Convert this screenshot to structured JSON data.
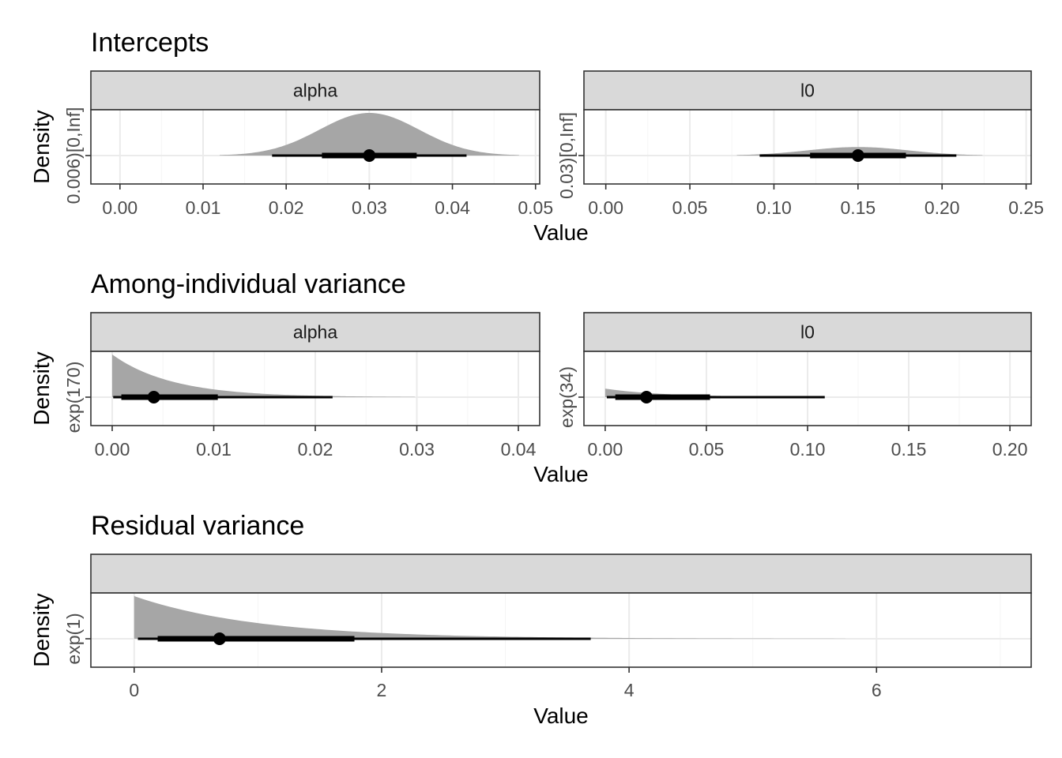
{
  "colors": {
    "density_fill": "#a6a6a6",
    "strip_fill": "#d9d9d9",
    "panel_border": "#333333",
    "grid_major": "#ebebeb",
    "grid_minor": "#f5f5f5",
    "interval": "#000000"
  },
  "chart_data": [
    {
      "type": "area",
      "chart_kind": "half-eye density with point-interval",
      "title": "Intercepts",
      "ylabel": "Density",
      "xlabel": "Value",
      "grid": true,
      "panels": [
        {
          "strip": "alpha",
          "y_tick": "0.006)[0,Inf]",
          "xlim": [
            -0.0035,
            0.0505
          ],
          "x_ticks": [
            0.0,
            0.01,
            0.02,
            0.03,
            0.04,
            0.05
          ],
          "x_tick_labels": [
            "0.00",
            "0.01",
            "0.02",
            "0.03",
            "0.04",
            "0.05"
          ],
          "density": {
            "shape": "normal",
            "mean": 0.03,
            "sd": 0.006,
            "range": [
              0.012,
              0.048
            ],
            "peak": 1.0
          },
          "point": 0.03,
          "interval_66": [
            0.0243,
            0.0357
          ],
          "interval_95": [
            0.0183,
            0.0417
          ]
        },
        {
          "strip": "l0",
          "y_tick": "0.03)[0,Inf]",
          "xlim": [
            -0.013,
            0.253
          ],
          "x_ticks": [
            0.0,
            0.05,
            0.1,
            0.15,
            0.2,
            0.25
          ],
          "x_tick_labels": [
            "0.00",
            "0.05",
            "0.10",
            "0.15",
            "0.20",
            "0.25"
          ],
          "density": {
            "shape": "normal",
            "mean": 0.15,
            "sd": 0.03,
            "range": [
              0.078,
              0.224
            ],
            "peak": 0.2
          },
          "point": 0.15,
          "interval_66": [
            0.1215,
            0.1785
          ],
          "interval_95": [
            0.0915,
            0.2085
          ]
        }
      ]
    },
    {
      "type": "area",
      "chart_kind": "half-eye density with point-interval",
      "title": "Among-individual variance",
      "ylabel": "Density",
      "xlabel": "Value",
      "grid": true,
      "panels": [
        {
          "strip": "alpha",
          "y_tick": "exp(170)",
          "xlim": [
            -0.0021,
            0.0421
          ],
          "x_ticks": [
            0.0,
            0.01,
            0.02,
            0.03,
            0.04
          ],
          "x_tick_labels": [
            "0.00",
            "0.01",
            "0.02",
            "0.03",
            "0.04"
          ],
          "density": {
            "shape": "exponential",
            "rate": 170,
            "range": [
              0.0,
              0.0298
            ],
            "peak": 1.0
          },
          "point": 0.0041,
          "interval_66": [
            0.0009,
            0.0104
          ],
          "interval_95": [
            0.0001,
            0.0217
          ]
        },
        {
          "strip": "l0",
          "y_tick": "exp(34)",
          "xlim": [
            -0.0105,
            0.2105
          ],
          "x_ticks": [
            0.0,
            0.05,
            0.1,
            0.15,
            0.2
          ],
          "x_tick_labels": [
            "0.00",
            "0.05",
            "0.10",
            "0.15",
            "0.20"
          ],
          "density": {
            "shape": "exponential",
            "rate": 34,
            "range": [
              0.0,
              0.09
            ],
            "peak": 0.2
          },
          "point": 0.0204,
          "interval_66": [
            0.005,
            0.0518
          ],
          "interval_95": [
            0.0008,
            0.1085
          ]
        }
      ]
    },
    {
      "type": "area",
      "chart_kind": "half-eye density with point-interval",
      "title": "Residual variance",
      "ylabel": "Density",
      "xlabel": "Value",
      "grid": true,
      "panels": [
        {
          "strip": "",
          "y_tick": "exp(1)",
          "xlim": [
            -0.35,
            7.25
          ],
          "x_ticks": [
            0,
            2,
            4,
            6
          ],
          "x_tick_labels": [
            "0",
            "2",
            "4",
            "6"
          ],
          "density": {
            "shape": "exponential",
            "rate": 1,
            "range": [
              0.0,
              5.75
            ],
            "peak": 1.0
          },
          "point": 0.69,
          "interval_66": [
            0.19,
            1.78
          ],
          "interval_95": [
            0.03,
            3.69
          ]
        }
      ]
    }
  ]
}
